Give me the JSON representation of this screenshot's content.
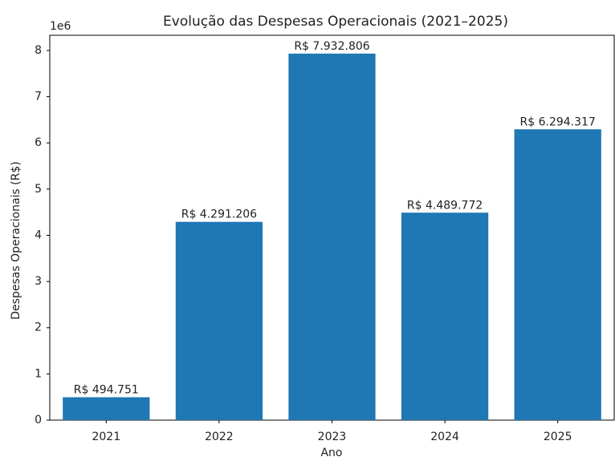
{
  "chart_data": {
    "type": "bar",
    "title": "Evolução das Despesas Operacionais (2021–2025)",
    "x_label": "Ano",
    "y_label": "Despesas Operacionais (R$)",
    "y_offset_label": "1e6",
    "categories": [
      "2021",
      "2022",
      "2023",
      "2024",
      "2025"
    ],
    "values": [
      494751,
      4291206,
      7932806,
      4489772,
      6294317
    ],
    "value_labels": [
      "R$ 494.751",
      "R$ 4.291.206",
      "R$ 7.932.806",
      "R$ 4.489.772",
      "R$ 6.294.317"
    ],
    "color": "#1f77b4",
    "ylim": [
      0,
      8329446
    ],
    "yticks": [
      0,
      {
        "value": 1000000,
        "label": "1"
      },
      {
        "value": 2000000,
        "label": "2"
      },
      {
        "value": 3000000,
        "label": "3"
      },
      {
        "value": 4000000,
        "label": "4"
      },
      {
        "value": 5000000,
        "label": "5"
      },
      {
        "value": 6000000,
        "label": "6"
      },
      {
        "value": 7000000,
        "label": "7"
      },
      {
        "value": 8000000,
        "label": "8"
      }
    ],
    "grid": false
  }
}
